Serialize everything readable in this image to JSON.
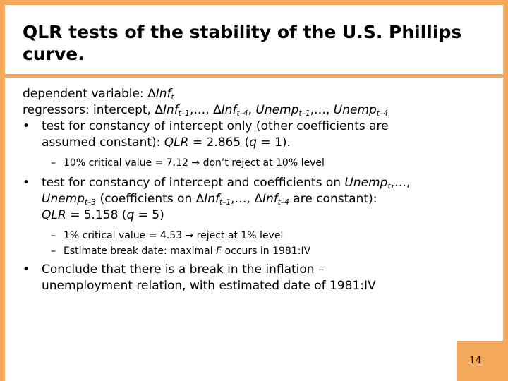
{
  "slide": {
    "title": "QLR tests of the stability of the U.S. Phillips curve.",
    "page_number": "14-"
  },
  "content": {
    "dep_var": {
      "prefix": "dependent variable:  Δ",
      "var": "Inf",
      "sub": "t"
    },
    "regressors": {
      "prefix": "regressors: intercept, Δ",
      "inf1": "Inf",
      "inf1_sub": "t–1",
      "mid": ",…, Δ",
      "inf4": "Inf",
      "inf4_sub": "t–4",
      "comma": ", ",
      "un1": "Unemp",
      "un1_sub": "t–1",
      "ellipsis": ",…, ",
      "un4": "Unemp",
      "un4_sub": "t–4"
    },
    "bullet1": {
      "marker": "•",
      "text1": "test for constancy of intercept only (other coefficients are",
      "text2": "assumed constant): ",
      "qlr": "QLR",
      "eq": " = 2.865 (",
      "q": "q",
      "end": " = 1)."
    },
    "sub1": {
      "marker": "–",
      "text": "10% critical value = 7.12 → don’t reject at 10% level"
    },
    "bullet2": {
      "marker": "•",
      "text1": "test for constancy of intercept and coefficients on ",
      "un_a": "Unemp",
      "un_a_sub": "t",
      "comma_ell": ",…,",
      "un_b": "Unemp",
      "un_b_sub": "t–3",
      "mid": " (coefficients on Δ",
      "inf_a": "Inf",
      "inf_a_sub": "t–1",
      "ell": ",…, Δ",
      "inf_b": "Inf",
      "inf_b_sub": "t–4",
      "end_line": " are constant):",
      "qlr": "QLR",
      "eq": " = 5.158 (",
      "q": "q",
      "end": " = 5)"
    },
    "sub2": {
      "marker": "–",
      "text": "1% critical value = 4.53 → reject at 1% level"
    },
    "sub3": {
      "marker": "–",
      "text1": "Estimate break date: maximal ",
      "F": "F",
      "text2": " occurs in 1981:IV"
    },
    "bullet3": {
      "marker": "•",
      "text1": "Conclude that there is a break in the inflation –",
      "text2": "unemployment relation, with estimated date of 1981:IV"
    }
  }
}
